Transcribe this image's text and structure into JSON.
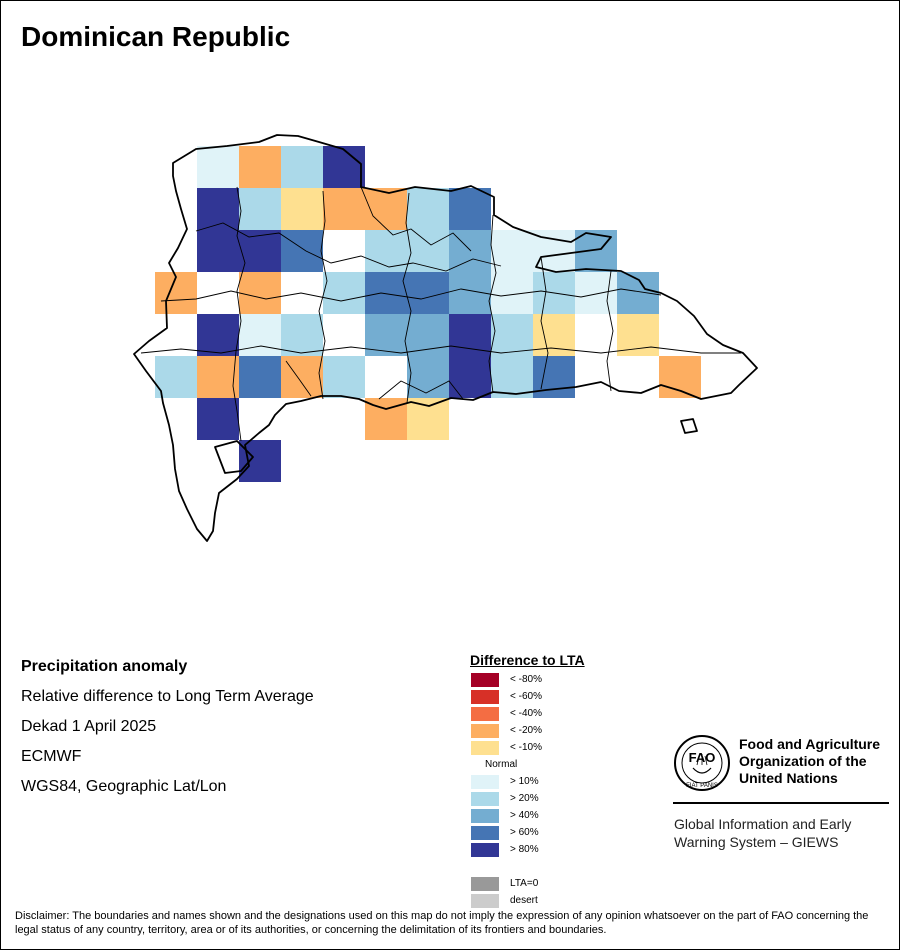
{
  "title": "Dominican Republic",
  "info": {
    "heading": "Precipitation anomaly",
    "line1": "Relative difference to Long Term Average",
    "line2": "Dekad 1 April 2025",
    "line3": "ECMWF",
    "line4": "WGS84, Geographic Lat/Lon"
  },
  "legend": {
    "title": "Difference to LTA",
    "items": [
      {
        "label": "< -80%",
        "color": "#a50026"
      },
      {
        "label": "< -60%",
        "color": "#d73027"
      },
      {
        "label": "< -40%",
        "color": "#f46d43"
      },
      {
        "label": "< -20%",
        "color": "#fdae61"
      },
      {
        "label": "< -10%",
        "color": "#fee090"
      },
      {
        "label": "Normal",
        "color": "#ffffff"
      },
      {
        "label": "> 10%",
        "color": "#e0f3f8"
      },
      {
        "label": "> 20%",
        "color": "#abd9e9"
      },
      {
        "label": "> 40%",
        "color": "#74add1"
      },
      {
        "label": "> 60%",
        "color": "#4575b4"
      },
      {
        "label": "> 80%",
        "color": "#313695"
      },
      {
        "label": "",
        "color": ""
      },
      {
        "label": "LTA=0",
        "color": "#999999"
      },
      {
        "label": "desert",
        "color": "#cccccc"
      }
    ]
  },
  "fao": {
    "name_line1": "Food and Agriculture",
    "name_line2": "Organization of the",
    "name_line3": "United Nations",
    "logo_top": "FAO",
    "logo_motto": "FIAT PANIS",
    "giews_line1": "Global Information and Early",
    "giews_line2": "Warning System – GIEWS"
  },
  "disclaimer": "Disclaimer: The boundaries and names shown and the designations used on this map do not imply the expression of any opinion whatsoever on the part of FAO concerning the legal status of any country, territory, area or of its authorities, or concerning the delimitation of its frontiers and boundaries.",
  "grid": {
    "rows": [
      [
        null,
        null,
        null,
        null,
        null,
        null,
        null,
        null,
        null,
        null,
        null,
        null,
        null,
        null,
        null,
        null,
        null,
        null,
        null,
        null,
        null,
        null,
        null,
        null,
        null,
        null,
        null,
        null,
        null,
        null,
        null,
        null,
        null,
        null,
        null
      ],
      [
        null,
        6,
        3,
        7,
        10,
        null,
        null,
        null,
        null,
        null,
        null,
        null,
        null,
        null,
        null
      ],
      [
        null,
        10,
        7,
        4,
        3,
        3,
        7,
        9,
        null,
        null,
        null,
        null,
        null,
        null,
        null
      ],
      [
        null,
        10,
        10,
        9,
        0,
        7,
        0,
        8,
        6,
        6,
        8,
        null,
        null,
        null,
        null
      ],
      [
        3,
        0,
        3,
        0,
        7,
        9,
        9,
        8,
        6,
        7,
        6,
        8,
        null,
        null,
        null
      ],
      [
        null,
        10,
        6,
        7,
        0,
        8,
        8,
        10,
        7,
        4,
        0,
        4,
        null,
        null,
        null
      ],
      [
        7,
        3,
        9,
        3,
        7,
        0,
        8,
        10,
        7,
        9,
        0,
        0,
        3,
        null,
        null
      ],
      [
        null,
        10,
        0,
        0,
        0,
        3,
        4,
        null,
        null,
        null,
        null,
        null,
        null,
        null,
        null
      ],
      [
        null,
        null,
        10,
        null,
        null,
        null,
        null,
        null,
        null,
        null,
        null,
        null,
        null,
        null,
        null
      ]
    ]
  }
}
